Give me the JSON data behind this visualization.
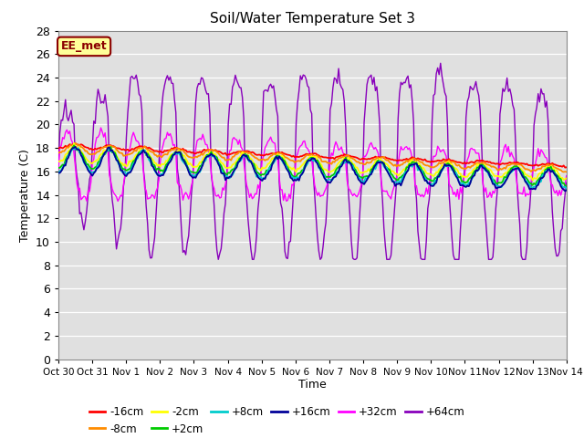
{
  "title": "Soil/Water Temperature Set 3",
  "xlabel": "Time",
  "ylabel": "Temperature (C)",
  "ylim": [
    0,
    28
  ],
  "yticks": [
    0,
    2,
    4,
    6,
    8,
    10,
    12,
    14,
    16,
    18,
    20,
    22,
    24,
    26,
    28
  ],
  "date_labels": [
    "Oct 30",
    "Oct 31",
    "Nov 1",
    "Nov 2",
    "Nov 3",
    "Nov 4",
    "Nov 5",
    "Nov 6",
    "Nov 7",
    "Nov 8",
    "Nov 9",
    "Nov 10",
    "Nov 11",
    "Nov 12",
    "Nov 13",
    "Nov 14"
  ],
  "annotation": "EE_met",
  "annotation_bg": "#FFFF99",
  "annotation_border": "#8B0000",
  "annotation_text_color": "#8B0000",
  "bg_color": "#E0E0E0",
  "series_colors": [
    "#FF0000",
    "#FF8C00",
    "#FFFF00",
    "#00CC00",
    "#00CCCC",
    "#000099",
    "#FF00FF",
    "#8800BB"
  ],
  "series_labels": [
    "-16cm",
    "-8cm",
    "-2cm",
    "+2cm",
    "+8cm",
    "+16cm",
    "+32cm",
    "+64cm"
  ]
}
